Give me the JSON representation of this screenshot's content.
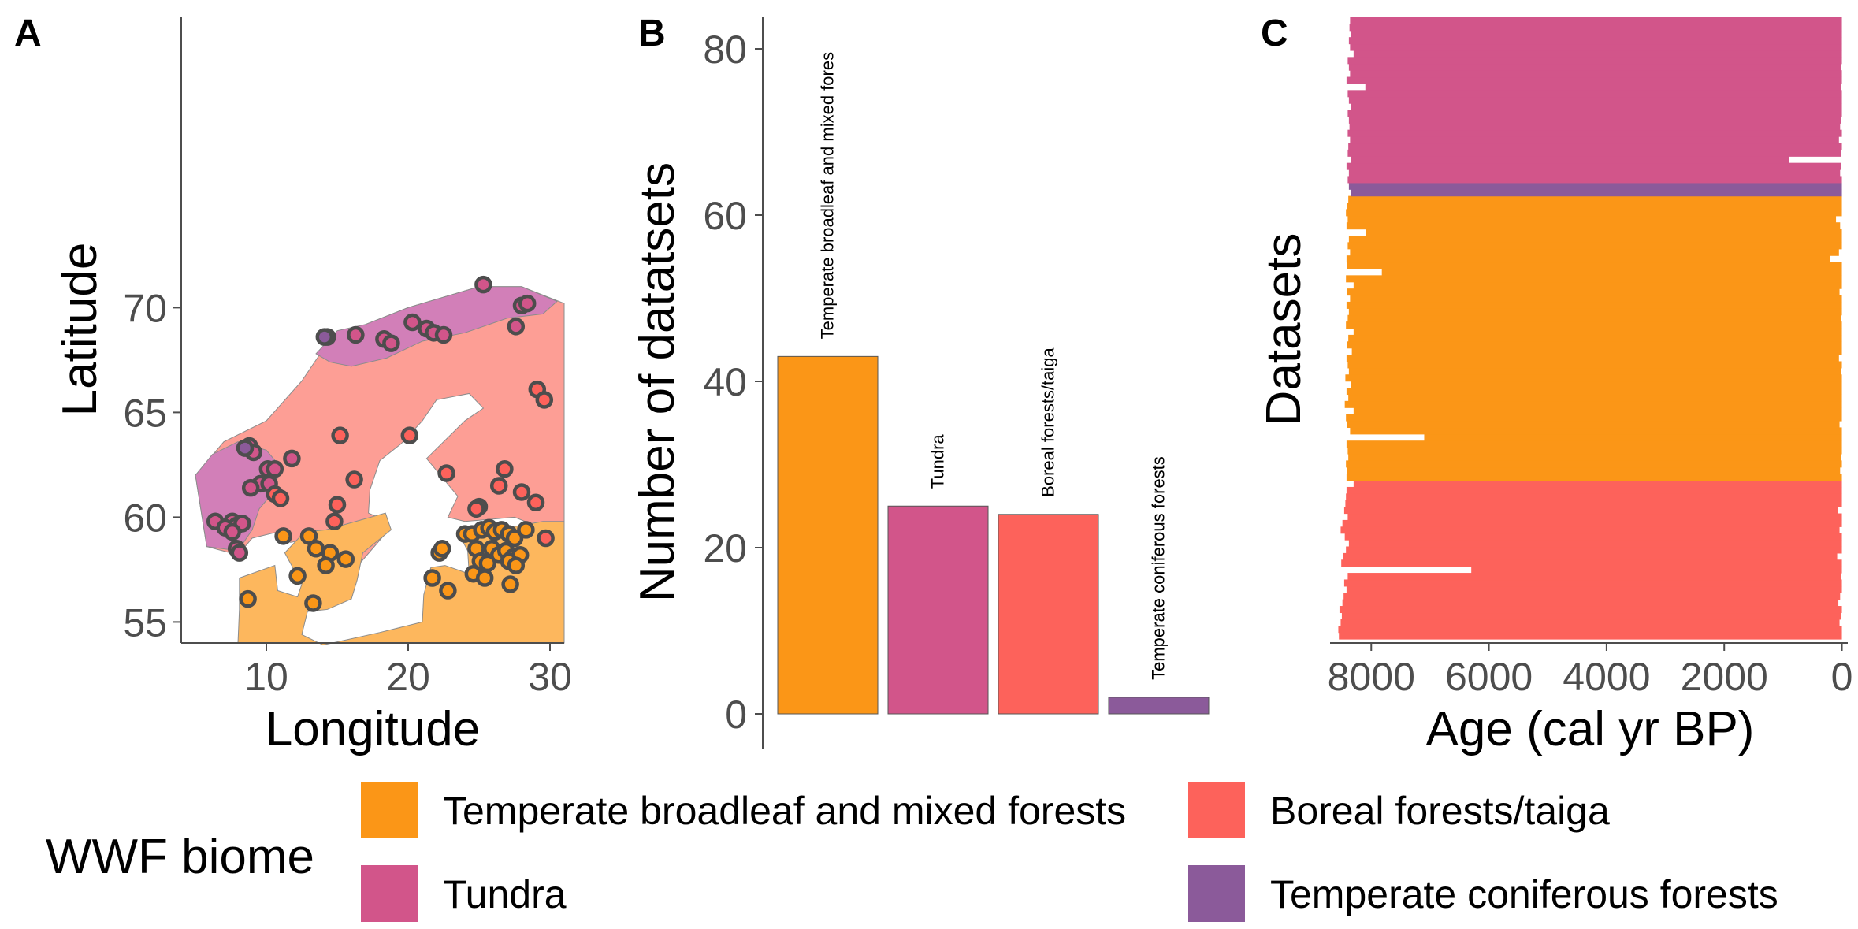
{
  "colors": {
    "temperate_broadleaf": "#fb9617",
    "tundra": "#d2558a",
    "boreal": "#fd625b",
    "temperate_coniferous": "#8b5a9a",
    "map_land_broadleaf": "#fdb75d",
    "map_land_boreal": "#fd9e95",
    "map_land_tundra": "#d27fb8",
    "axis": "#4d4d4d"
  },
  "panels": {
    "a": {
      "letter": "A"
    },
    "b": {
      "letter": "B"
    },
    "c": {
      "letter": "C"
    }
  },
  "legend": {
    "title": "WWF biome",
    "items": [
      {
        "label": "Temperate broadleaf and mixed forests",
        "color": "#fb9617"
      },
      {
        "label": "Boreal forests/taiga",
        "color": "#fd625b"
      },
      {
        "label": "Tundra",
        "color": "#d2558a"
      },
      {
        "label": "Temperate coniferous forests",
        "color": "#8b5a9a"
      }
    ]
  },
  "chart_data": [
    {
      "type": "scatter",
      "panel": "A",
      "xlabel": "Longitude",
      "ylabel": "Latitude",
      "xlim": [
        4,
        31
      ],
      "ylim": [
        54,
        74
      ],
      "xticks": [
        "10",
        "20",
        "30"
      ],
      "yticks": [
        "55",
        "60",
        "65",
        "70"
      ],
      "series": [
        {
          "biome": "tundra",
          "points": [
            [
              25.3,
              71.1
            ],
            [
              14.3,
              68.6
            ],
            [
              16.3,
              68.7
            ],
            [
              18.3,
              68.5
            ],
            [
              18.8,
              68.3
            ],
            [
              20.3,
              69.3
            ],
            [
              21.3,
              69.0
            ],
            [
              21.8,
              68.8
            ],
            [
              22.5,
              68.7
            ],
            [
              28.0,
              70.1
            ],
            [
              28.4,
              70.2
            ],
            [
              27.6,
              69.1
            ],
            [
              8.8,
              63.4
            ],
            [
              9.1,
              63.1
            ],
            [
              10.1,
              62.3
            ],
            [
              10.6,
              62.3
            ],
            [
              11.8,
              62.8
            ],
            [
              9.6,
              61.6
            ],
            [
              10.2,
              61.6
            ],
            [
              8.9,
              61.4
            ],
            [
              6.4,
              59.8
            ],
            [
              7.6,
              59.8
            ],
            [
              7.9,
              59.6
            ],
            [
              8.3,
              59.7
            ],
            [
              7.1,
              59.5
            ],
            [
              7.6,
              59.3
            ],
            [
              7.9,
              58.5
            ],
            [
              8.1,
              58.3
            ]
          ]
        },
        {
          "biome": "temperate_coniferous",
          "points": [
            [
              14.1,
              68.6
            ],
            [
              8.5,
              63.3
            ]
          ]
        },
        {
          "biome": "boreal",
          "points": [
            [
              15.2,
              63.9
            ],
            [
              20.1,
              63.9
            ],
            [
              29.1,
              66.1
            ],
            [
              29.6,
              65.6
            ],
            [
              10.6,
              61.1
            ],
            [
              11.0,
              60.9
            ],
            [
              16.2,
              61.8
            ],
            [
              15.0,
              60.6
            ],
            [
              14.8,
              59.8
            ],
            [
              22.7,
              62.1
            ],
            [
              25.0,
              60.5
            ],
            [
              24.8,
              60.4
            ],
            [
              26.8,
              62.3
            ],
            [
              26.4,
              61.5
            ],
            [
              28.0,
              61.2
            ],
            [
              29.0,
              60.7
            ],
            [
              29.7,
              59.0
            ]
          ]
        },
        {
          "biome": "temperate_broadleaf",
          "points": [
            [
              11.2,
              59.1
            ],
            [
              13.0,
              59.1
            ],
            [
              14.5,
              58.3
            ],
            [
              14.2,
              57.7
            ],
            [
              15.6,
              58.0
            ],
            [
              13.5,
              58.5
            ],
            [
              12.2,
              57.2
            ],
            [
              13.3,
              55.9
            ],
            [
              8.7,
              56.1
            ],
            [
              21.7,
              57.1
            ],
            [
              22.8,
              56.5
            ],
            [
              22.2,
              58.3
            ],
            [
              22.4,
              58.5
            ],
            [
              24.0,
              59.2
            ],
            [
              24.5,
              59.2
            ],
            [
              25.2,
              59.4
            ],
            [
              25.7,
              59.5
            ],
            [
              26.1,
              59.3
            ],
            [
              26.6,
              59.4
            ],
            [
              27.1,
              59.2
            ],
            [
              27.5,
              59.0
            ],
            [
              28.3,
              59.4
            ],
            [
              24.8,
              58.5
            ],
            [
              25.9,
              58.5
            ],
            [
              26.4,
              58.2
            ],
            [
              26.9,
              58.4
            ],
            [
              27.4,
              58.1
            ],
            [
              27.9,
              58.2
            ],
            [
              25.1,
              57.9
            ],
            [
              25.6,
              57.8
            ],
            [
              27.1,
              57.9
            ],
            [
              27.6,
              57.7
            ],
            [
              24.6,
              57.3
            ],
            [
              25.4,
              57.1
            ],
            [
              27.2,
              56.8
            ]
          ]
        }
      ]
    },
    {
      "type": "bar",
      "panel": "B",
      "ylabel": "Number of datatsets",
      "ylim": [
        0,
        84
      ],
      "yticks": [
        "0",
        "20",
        "40",
        "60",
        "80"
      ],
      "categories": [
        "Temperate broadleaf and mixed fores",
        "Tundra",
        "Boreal forests/taiga",
        "Temperate coniferous forests"
      ],
      "biomes": [
        "temperate_broadleaf",
        "tundra",
        "boreal",
        "temperate_coniferous"
      ],
      "values": [
        43,
        25,
        24,
        2
      ]
    },
    {
      "type": "bar",
      "orientation": "horizontal",
      "panel": "C",
      "xlabel": "Age (cal yr BP)",
      "ylabel": "Datasets",
      "xlim": [
        8700,
        -100
      ],
      "xticks": [
        "8000",
        "6000",
        "4000",
        "2000",
        "0"
      ],
      "note_order": "bottom to top: boreal, temperate_broadleaf, temperate_coniferous, tundra",
      "groups": [
        {
          "biome": "boreal",
          "ranges": [
            [
              8550,
              0
            ],
            [
              8560,
              0
            ],
            [
              8520,
              40
            ],
            [
              8500,
              20
            ],
            [
              8540,
              0
            ],
            [
              8490,
              60
            ],
            [
              8470,
              30
            ],
            [
              8420,
              0
            ],
            [
              8460,
              0
            ],
            [
              8400,
              20
            ],
            [
              6300,
              0
            ],
            [
              8510,
              0
            ],
            [
              8480,
              80
            ],
            [
              8430,
              0
            ],
            [
              8380,
              0
            ],
            [
              8450,
              0
            ],
            [
              8520,
              40
            ],
            [
              8490,
              0
            ],
            [
              8400,
              0
            ],
            [
              8460,
              70
            ],
            [
              8440,
              0
            ],
            [
              8430,
              0
            ],
            [
              8420,
              0
            ],
            [
              8300,
              0
            ]
          ]
        },
        {
          "biome": "temperate_broadleaf",
          "ranges": [
            [
              8420,
              0
            ],
            [
              8410,
              30
            ],
            [
              8430,
              0
            ],
            [
              8390,
              20
            ],
            [
              8400,
              0
            ],
            [
              8420,
              0
            ],
            [
              7100,
              0
            ],
            [
              8360,
              0
            ],
            [
              8410,
              40
            ],
            [
              8430,
              0
            ],
            [
              8300,
              0
            ],
            [
              8450,
              0
            ],
            [
              8390,
              0
            ],
            [
              8420,
              0
            ],
            [
              8350,
              0
            ],
            [
              8440,
              0
            ],
            [
              8380,
              20
            ],
            [
              8400,
              0
            ],
            [
              8420,
              50
            ],
            [
              8330,
              0
            ],
            [
              8410,
              0
            ],
            [
              8390,
              0
            ],
            [
              8300,
              0
            ],
            [
              8430,
              0
            ],
            [
              8400,
              20
            ],
            [
              8380,
              0
            ],
            [
              8420,
              0
            ],
            [
              8360,
              0
            ],
            [
              8410,
              40
            ],
            [
              8300,
              0
            ],
            [
              8430,
              0
            ],
            [
              7820,
              0
            ],
            [
              8410,
              0
            ],
            [
              8420,
              200
            ],
            [
              8360,
              50
            ],
            [
              8400,
              0
            ],
            [
              8380,
              0
            ],
            [
              8090,
              0
            ],
            [
              8420,
              30
            ],
            [
              8400,
              100
            ],
            [
              8430,
              0
            ],
            [
              8410,
              0
            ],
            [
              8390,
              0
            ]
          ]
        },
        {
          "biome": "temperate_coniferous",
          "ranges": [
            [
              8350,
              0
            ],
            [
              8380,
              0
            ]
          ]
        },
        {
          "biome": "tundra",
          "ranges": [
            [
              8400,
              0
            ],
            [
              8380,
              30
            ],
            [
              8420,
              20
            ],
            [
              8350,
              900
            ],
            [
              8400,
              20
            ],
            [
              8390,
              0
            ],
            [
              8360,
              50
            ],
            [
              8400,
              0
            ],
            [
              8370,
              30
            ],
            [
              8380,
              20
            ],
            [
              8400,
              0
            ],
            [
              8350,
              0
            ],
            [
              8380,
              0
            ],
            [
              8400,
              0
            ],
            [
              8100,
              20
            ],
            [
              8420,
              0
            ],
            [
              8360,
              0
            ],
            [
              8380,
              10
            ],
            [
              8400,
              0
            ],
            [
              8300,
              0
            ],
            [
              8360,
              0
            ],
            [
              8380,
              0
            ],
            [
              8350,
              0
            ],
            [
              8370,
              0
            ],
            [
              8360,
              0
            ]
          ]
        }
      ]
    }
  ]
}
